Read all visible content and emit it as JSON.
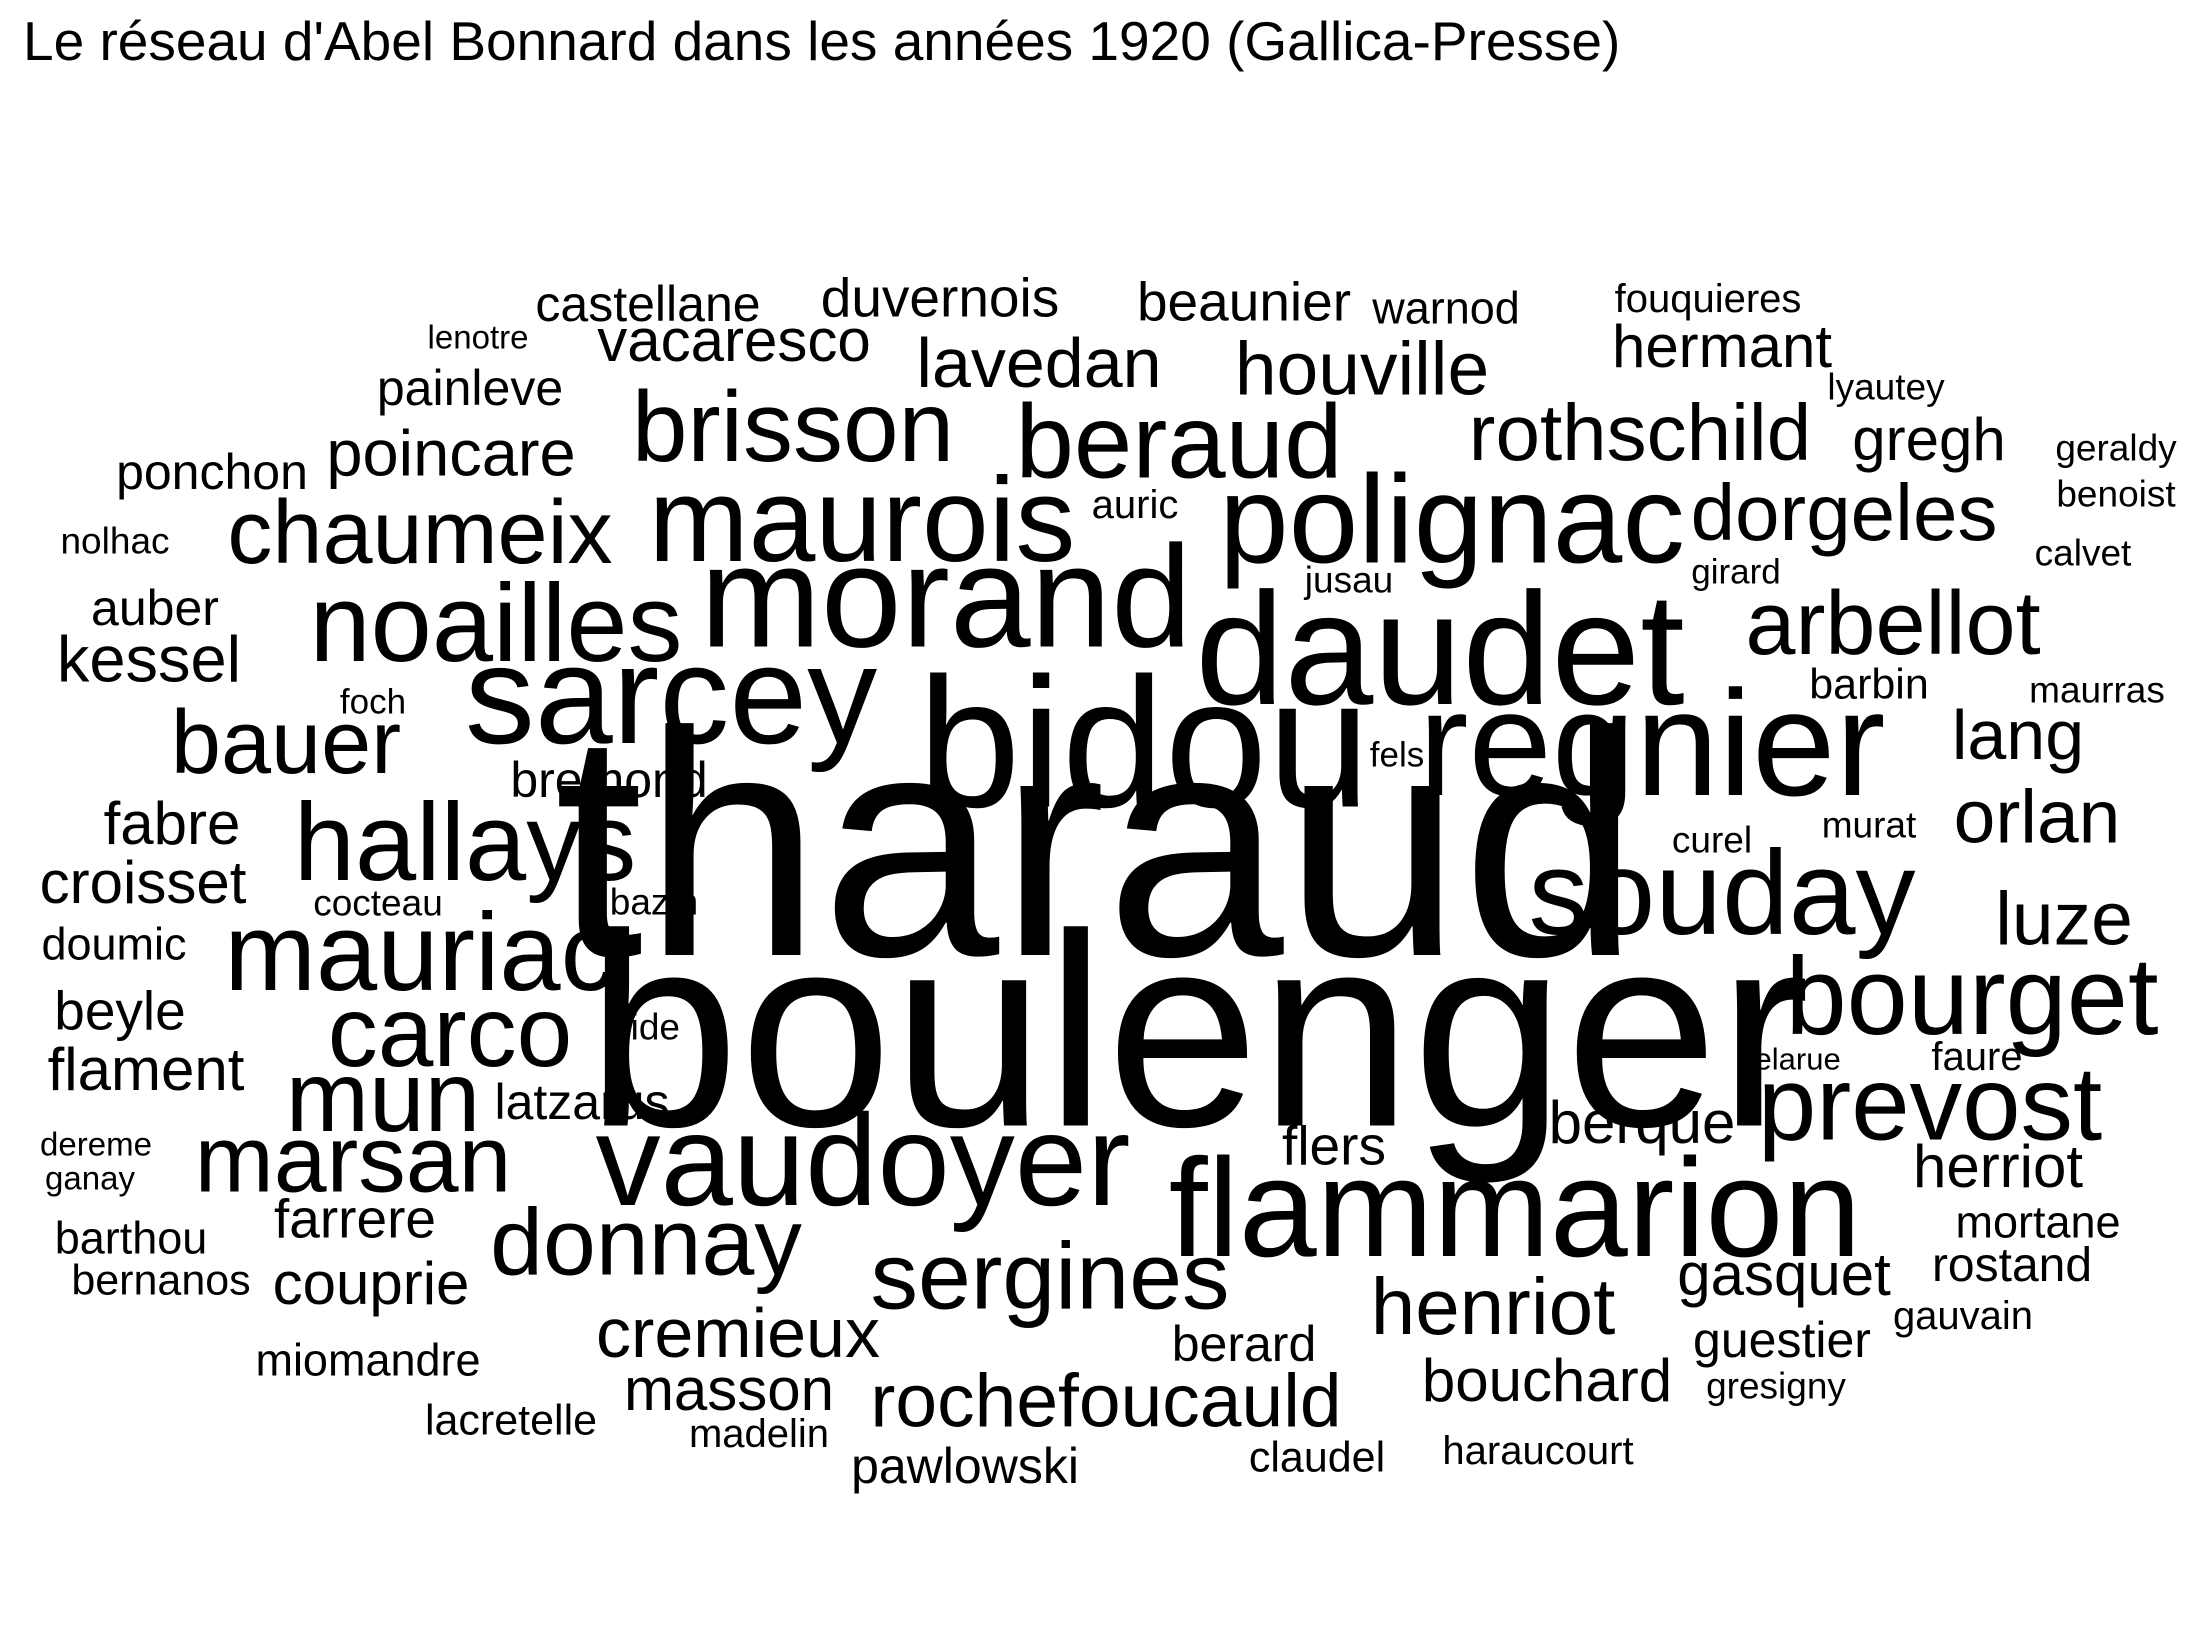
{
  "title": "Le réseau d'Abel Bonnard dans les années 1920 (Gallica-Presse)",
  "words": [
    "tharaud",
    "boulenger",
    "bidou",
    "daudet",
    "regnier",
    "morand",
    "sarcey",
    "flammarion",
    "vaudoyer",
    "polignac",
    "maurois",
    "souday",
    "noailles",
    "hallays",
    "mauriac",
    "bourget",
    "prevost",
    "beraud",
    "brisson",
    "carco",
    "mun",
    "marsan",
    "sergines",
    "donnay",
    "chaumeix",
    "bauer",
    "arbellot",
    "rothschild",
    "dorgeles",
    "henriot",
    "rochefoucauld",
    "houville",
    "lavedan",
    "luze",
    "orlan",
    "lang",
    "cremieux",
    "poincare",
    "gregh",
    "hermant",
    "kessel",
    "vacaresco",
    "masson",
    "bouchard",
    "gasquet",
    "fabre",
    "croisset",
    "flament",
    "berque",
    "herriot",
    "flers",
    "couprie",
    "farrere",
    "beyle",
    "guestier",
    "berard",
    "beaunier",
    "duvernois",
    "castellane",
    "latzarus",
    "bremond",
    "pawlowski",
    "auber",
    "rostand",
    "mortane",
    "painleve",
    "miomandre",
    "ponchon",
    "warnod",
    "doumic",
    "barthou",
    "bernanos",
    "claudel",
    "haraucourt",
    "lacretelle",
    "barbin",
    "gauvain",
    "faure",
    "fouquieres",
    "auric",
    "madelin",
    "lyautey",
    "geraldy",
    "benoist",
    "calvet",
    "maurras",
    "curel",
    "murat",
    "gresigny",
    "cocteau",
    "bazin",
    "gide",
    "jusau",
    "girard",
    "fels",
    "foch",
    "nolhac",
    "lenotre",
    "dereme",
    "ganay",
    "delarue"
  ]
}
